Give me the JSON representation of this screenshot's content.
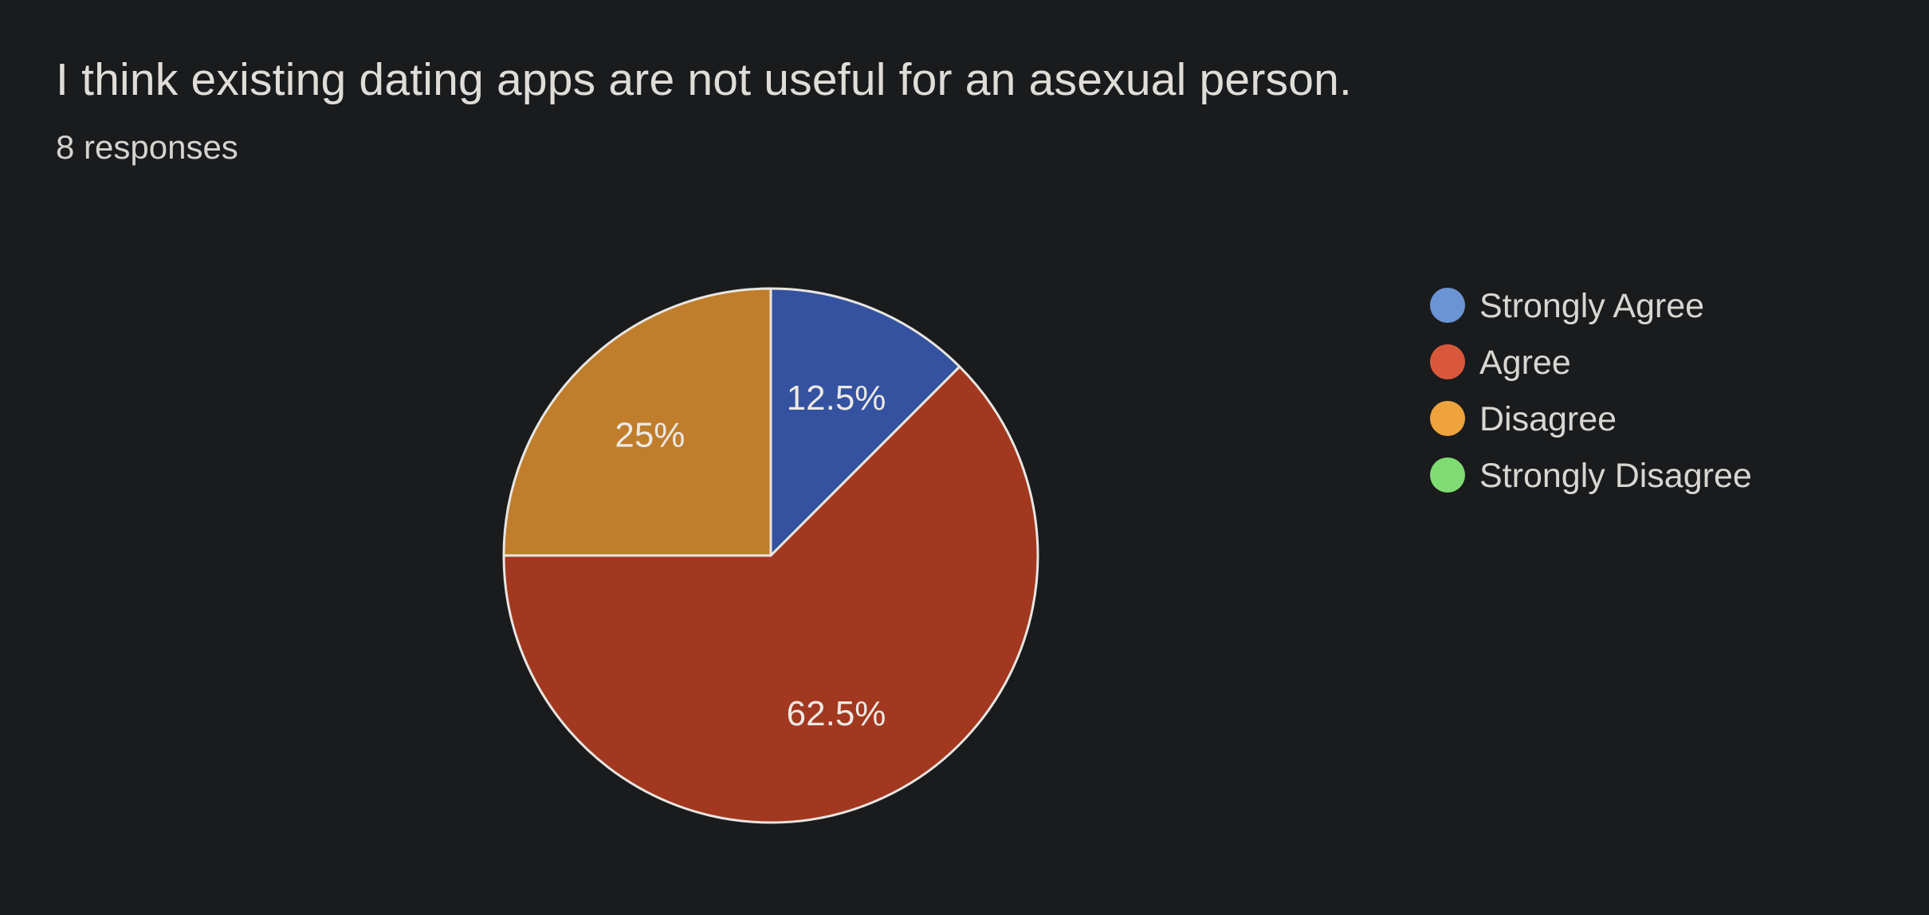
{
  "header": {
    "title": "I think existing dating apps are not useful for an asexual person.",
    "responses": "8 responses"
  },
  "chart_data": {
    "type": "pie",
    "categories": [
      "Strongly Agree",
      "Agree",
      "Disagree",
      "Strongly Disagree"
    ],
    "values": [
      12.5,
      62.5,
      25,
      0
    ],
    "slice_labels": [
      "12.5%",
      "62.5%",
      "25%",
      ""
    ],
    "legend": {
      "position": "right",
      "entries": [
        "Strongly Agree",
        "Agree",
        "Disagree",
        "Strongly Disagree"
      ]
    },
    "legend_colors": [
      "#6a94d4",
      "#d9583b",
      "#eea33c",
      "#7fdc72"
    ],
    "slice_colors": [
      "#34529f",
      "#a2381f",
      "#c07d2b",
      "#5aa84f"
    ],
    "start_angle_deg": 90,
    "direction": "clockwise",
    "background": "#1a1b1d"
  }
}
